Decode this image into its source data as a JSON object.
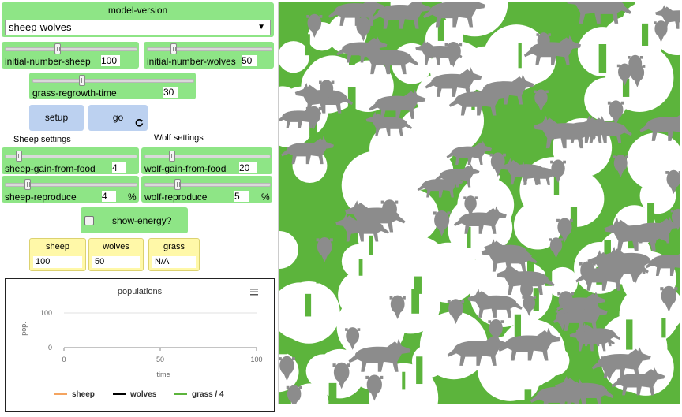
{
  "chooser": {
    "title": "model-version",
    "value": "sheep-wolves",
    "arrow": "▼"
  },
  "sliders": {
    "initial_number_sheep": {
      "label": "initial-number-sheep",
      "value": "100",
      "unit": "",
      "level": 0.4
    },
    "initial_number_wolves": {
      "label": "initial-number-wolves",
      "value": "50",
      "unit": "",
      "level": 0.2
    },
    "grass_regrowth_time": {
      "label": "grass-regrowth-time",
      "value": "30",
      "unit": "",
      "level": 0.3
    },
    "sheep_gain_from_food": {
      "label": "sheep-gain-from-food",
      "value": "4",
      "unit": "",
      "level": 0.08
    },
    "sheep_reproduce": {
      "label": "sheep-reproduce",
      "value": "4",
      "unit": "%",
      "level": 0.2
    },
    "wolf_gain_from_food": {
      "label": "wolf-gain-from-food",
      "value": "20",
      "unit": "",
      "level": 0.2
    },
    "wolf_reproduce": {
      "label": "wolf-reproduce",
      "value": "5",
      "unit": "%",
      "level": 0.25
    }
  },
  "buttons": {
    "setup": "setup",
    "go": "go",
    "go_icon": "forever-arrow-icon"
  },
  "notes": {
    "sheep_settings": "Sheep settings",
    "wolf_settings": "Wolf settings"
  },
  "switch": {
    "label": "show-energy?",
    "on": false
  },
  "monitors": [
    {
      "label": "sheep",
      "value": "100"
    },
    {
      "label": "wolves",
      "value": "50"
    },
    {
      "label": "grass",
      "value": "N/A"
    }
  ],
  "plot": {
    "menu_icon": "hamburger-menu-icon",
    "chart_data": {
      "type": "line",
      "title": "populations",
      "xlabel": "time",
      "ylabel": "pop.",
      "xlim": [
        0,
        100
      ],
      "ylim": [
        0,
        100
      ],
      "x_ticks": [
        "0",
        "50",
        "100"
      ],
      "y_ticks": [
        "100",
        "0"
      ],
      "grid": true,
      "legend_placement": "bottom",
      "series": [
        {
          "name": "sheep",
          "color": "#f4a460",
          "values": []
        },
        {
          "name": "wolves",
          "color": "#000000",
          "values": []
        },
        {
          "name": "grass / 4",
          "color": "#5cb43c",
          "values": []
        }
      ]
    }
  },
  "world": {
    "description_colors": {
      "grass": "#5cb43c",
      "dirt": "#ffffff",
      "agent": "#8c8c8c"
    }
  }
}
